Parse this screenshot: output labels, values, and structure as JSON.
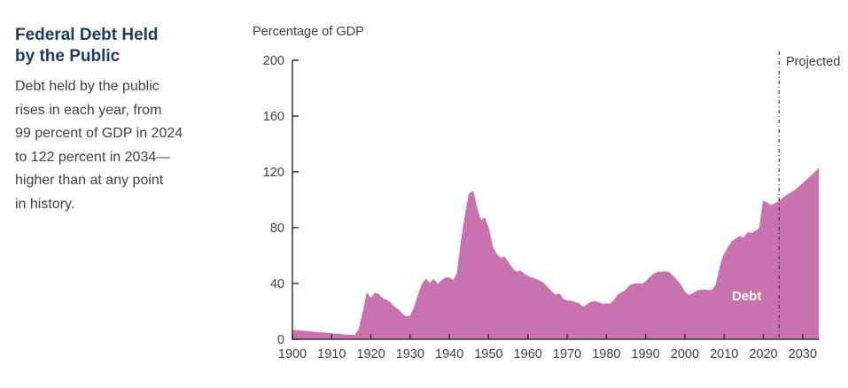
{
  "sidebar": {
    "title_lines": [
      "Federal Debt Held",
      "by the Public"
    ],
    "description_lines": [
      "Debt held by the public",
      "rises in each year, from",
      "99 percent of GDP in 2024",
      "to 122 percent in 2034—",
      "higher than at any point",
      "in history."
    ]
  },
  "chart": {
    "axis_title": "Percentage of GDP",
    "projected_label": "Projected",
    "debt_label": "Debt"
  },
  "chart_data": {
    "type": "area",
    "title": "Federal Debt Held by the Public",
    "xlabel": "",
    "ylabel": "Percentage of GDP",
    "ylim": [
      0,
      200
    ],
    "yticks": [
      0,
      40,
      80,
      120,
      160,
      200
    ],
    "xlim": [
      1900,
      2034
    ],
    "xticks": [
      1900,
      1910,
      1920,
      1930,
      1940,
      1950,
      1960,
      1970,
      1980,
      1990,
      2000,
      2010,
      2020,
      2030
    ],
    "grid": false,
    "legend_position": "none",
    "projection_start": 2024,
    "annotations": [
      {
        "text": "Projected",
        "position": "top-right-of-projection-line"
      },
      {
        "text": "Debt",
        "position": "inside-area-right"
      }
    ],
    "colors": {
      "area": "#c873ae",
      "axis": "#35343f",
      "dash_line": "#33323c",
      "tick_text": "#3f3e45",
      "caption_title": "#1e3c61",
      "caption_text": "#414046",
      "debt_label_text": "#ffffff"
    },
    "x": [
      1900,
      1901,
      1902,
      1903,
      1904,
      1905,
      1906,
      1907,
      1908,
      1909,
      1910,
      1911,
      1912,
      1913,
      1914,
      1915,
      1916,
      1917,
      1918,
      1919,
      1920,
      1921,
      1922,
      1923,
      1924,
      1925,
      1926,
      1927,
      1928,
      1929,
      1930,
      1931,
      1932,
      1933,
      1934,
      1935,
      1936,
      1937,
      1938,
      1939,
      1940,
      1941,
      1942,
      1943,
      1944,
      1945,
      1946,
      1947,
      1948,
      1949,
      1950,
      1951,
      1952,
      1953,
      1954,
      1955,
      1956,
      1957,
      1958,
      1959,
      1960,
      1961,
      1962,
      1963,
      1964,
      1965,
      1966,
      1967,
      1968,
      1969,
      1970,
      1971,
      1972,
      1973,
      1974,
      1975,
      1976,
      1977,
      1978,
      1979,
      1980,
      1981,
      1982,
      1983,
      1984,
      1985,
      1986,
      1987,
      1988,
      1989,
      1990,
      1991,
      1992,
      1993,
      1994,
      1995,
      1996,
      1997,
      1998,
      1999,
      2000,
      2001,
      2002,
      2003,
      2004,
      2005,
      2006,
      2007,
      2008,
      2009,
      2010,
      2011,
      2012,
      2013,
      2014,
      2015,
      2016,
      2017,
      2018,
      2019,
      2020,
      2021,
      2022,
      2023,
      2024,
      2025,
      2026,
      2027,
      2028,
      2029,
      2030,
      2031,
      2032,
      2033,
      2034
    ],
    "series": [
      {
        "name": "Debt",
        "values": [
          6.5,
          6.2,
          6.0,
          5.8,
          5.5,
          5.2,
          4.8,
          4.5,
          4.6,
          4.3,
          4.0,
          3.8,
          3.6,
          3.2,
          3.1,
          3.0,
          2.7,
          7.5,
          19,
          33,
          29,
          33,
          32,
          29,
          28,
          26,
          23,
          21,
          18,
          16,
          16.5,
          22,
          31,
          39,
          43,
          40,
          43,
          39,
          42,
          44,
          44,
          42,
          47,
          70,
          88,
          104,
          106,
          94,
          85,
          87,
          79,
          66,
          61,
          58,
          59,
          55,
          51,
          48,
          49,
          47,
          45,
          44,
          43,
          42,
          40,
          37,
          34,
          31.5,
          32.5,
          28.5,
          27.5,
          27.5,
          26.5,
          25.5,
          23,
          24.5,
          26.5,
          27,
          26.5,
          25,
          25.5,
          25.2,
          28,
          32,
          33.5,
          35.5,
          38.5,
          39.5,
          39.9,
          39.4,
          41,
          44,
          46.6,
          48.2,
          48,
          48.4,
          47.8,
          45,
          42,
          38.5,
          33.7,
          31.4,
          32.6,
          34.5,
          35.1,
          35.3,
          34.9,
          35.2,
          39.2,
          52.2,
          60.6,
          65.5,
          70,
          72,
          73.7,
          72.5,
          76.3,
          76,
          77.5,
          79.3,
          99,
          97.5,
          95.8,
          97.3,
          99,
          101.2,
          103.1,
          104.8,
          106.7,
          108.9,
          111.5,
          114,
          116.6,
          119.3,
          122
        ]
      }
    ]
  }
}
